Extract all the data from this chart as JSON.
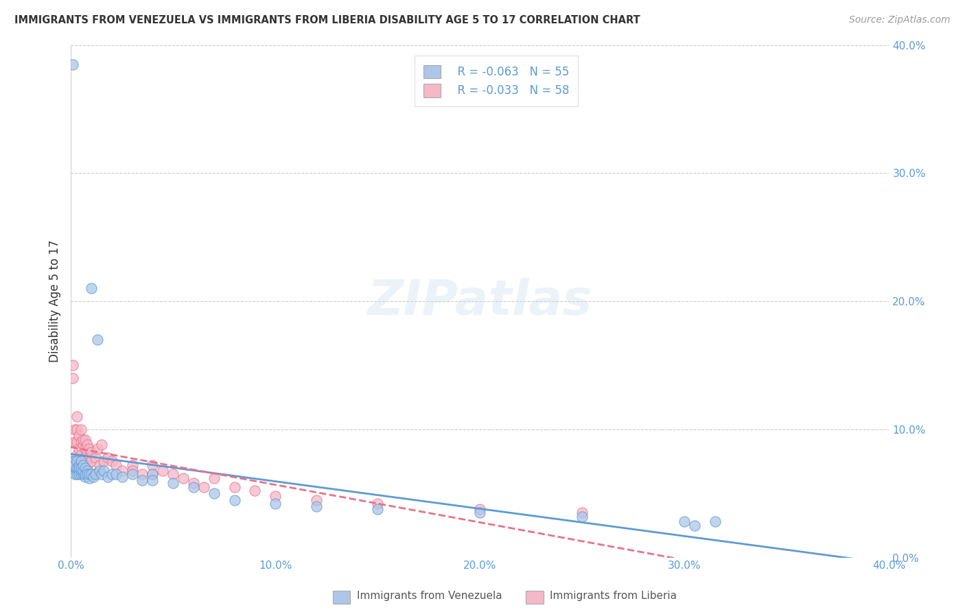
{
  "title": "IMMIGRANTS FROM VENEZUELA VS IMMIGRANTS FROM LIBERIA DISABILITY AGE 5 TO 17 CORRELATION CHART",
  "source": "Source: ZipAtlas.com",
  "ylabel": "Disability Age 5 to 17",
  "legend_label1": "Immigrants from Venezuela",
  "legend_label2": "Immigrants from Liberia",
  "legend_R1": "R = -0.063",
  "legend_N1": "N = 55",
  "legend_R2": "R = -0.033",
  "legend_N2": "N = 58",
  "color_venezuela": "#aec6e8",
  "color_liberia": "#f4b8c8",
  "trendline_color_venezuela": "#5b9bd5",
  "trendline_color_liberia": "#e8728a",
  "background_color": "#ffffff",
  "xlim": [
    0.0,
    0.4
  ],
  "ylim": [
    0.0,
    0.4
  ],
  "yticks": [
    0.0,
    0.1,
    0.2,
    0.3,
    0.4
  ],
  "xticks": [
    0.0,
    0.1,
    0.2,
    0.3,
    0.4
  ],
  "venezuela_x": [
    0.001,
    0.001,
    0.002,
    0.002,
    0.002,
    0.003,
    0.003,
    0.003,
    0.003,
    0.004,
    0.004,
    0.004,
    0.004,
    0.005,
    0.005,
    0.005,
    0.005,
    0.006,
    0.006,
    0.006,
    0.007,
    0.007,
    0.007,
    0.008,
    0.008,
    0.009,
    0.009,
    0.01,
    0.01,
    0.011,
    0.012,
    0.013,
    0.014,
    0.015,
    0.016,
    0.018,
    0.02,
    0.022,
    0.025,
    0.03,
    0.035,
    0.04,
    0.04,
    0.05,
    0.06,
    0.07,
    0.08,
    0.1,
    0.12,
    0.15,
    0.2,
    0.25,
    0.3,
    0.305,
    0.315
  ],
  "venezuela_y": [
    0.385,
    0.07,
    0.075,
    0.065,
    0.072,
    0.068,
    0.075,
    0.065,
    0.07,
    0.072,
    0.068,
    0.065,
    0.07,
    0.075,
    0.065,
    0.068,
    0.07,
    0.065,
    0.068,
    0.072,
    0.063,
    0.07,
    0.065,
    0.068,
    0.065,
    0.062,
    0.065,
    0.21,
    0.065,
    0.063,
    0.065,
    0.17,
    0.068,
    0.065,
    0.068,
    0.063,
    0.065,
    0.065,
    0.063,
    0.065,
    0.06,
    0.065,
    0.06,
    0.058,
    0.055,
    0.05,
    0.045,
    0.042,
    0.04,
    0.038,
    0.035,
    0.032,
    0.028,
    0.025,
    0.028
  ],
  "liberia_x": [
    0.001,
    0.001,
    0.001,
    0.002,
    0.002,
    0.002,
    0.003,
    0.003,
    0.003,
    0.003,
    0.004,
    0.004,
    0.004,
    0.005,
    0.005,
    0.005,
    0.005,
    0.006,
    0.006,
    0.006,
    0.007,
    0.007,
    0.007,
    0.008,
    0.008,
    0.008,
    0.009,
    0.009,
    0.01,
    0.01,
    0.011,
    0.012,
    0.013,
    0.014,
    0.015,
    0.016,
    0.018,
    0.02,
    0.022,
    0.025,
    0.03,
    0.03,
    0.035,
    0.04,
    0.04,
    0.045,
    0.05,
    0.055,
    0.06,
    0.065,
    0.07,
    0.08,
    0.09,
    0.1,
    0.12,
    0.15,
    0.2,
    0.25
  ],
  "liberia_y": [
    0.075,
    0.14,
    0.15,
    0.07,
    0.09,
    0.1,
    0.08,
    0.09,
    0.1,
    0.11,
    0.072,
    0.085,
    0.095,
    0.075,
    0.09,
    0.08,
    0.1,
    0.088,
    0.075,
    0.092,
    0.085,
    0.092,
    0.078,
    0.082,
    0.072,
    0.088,
    0.078,
    0.085,
    0.075,
    0.082,
    0.065,
    0.078,
    0.085,
    0.072,
    0.088,
    0.075,
    0.078,
    0.075,
    0.072,
    0.068,
    0.072,
    0.068,
    0.065,
    0.072,
    0.065,
    0.068,
    0.065,
    0.062,
    0.058,
    0.055,
    0.062,
    0.055,
    0.052,
    0.048,
    0.045,
    0.042,
    0.038,
    0.035
  ]
}
